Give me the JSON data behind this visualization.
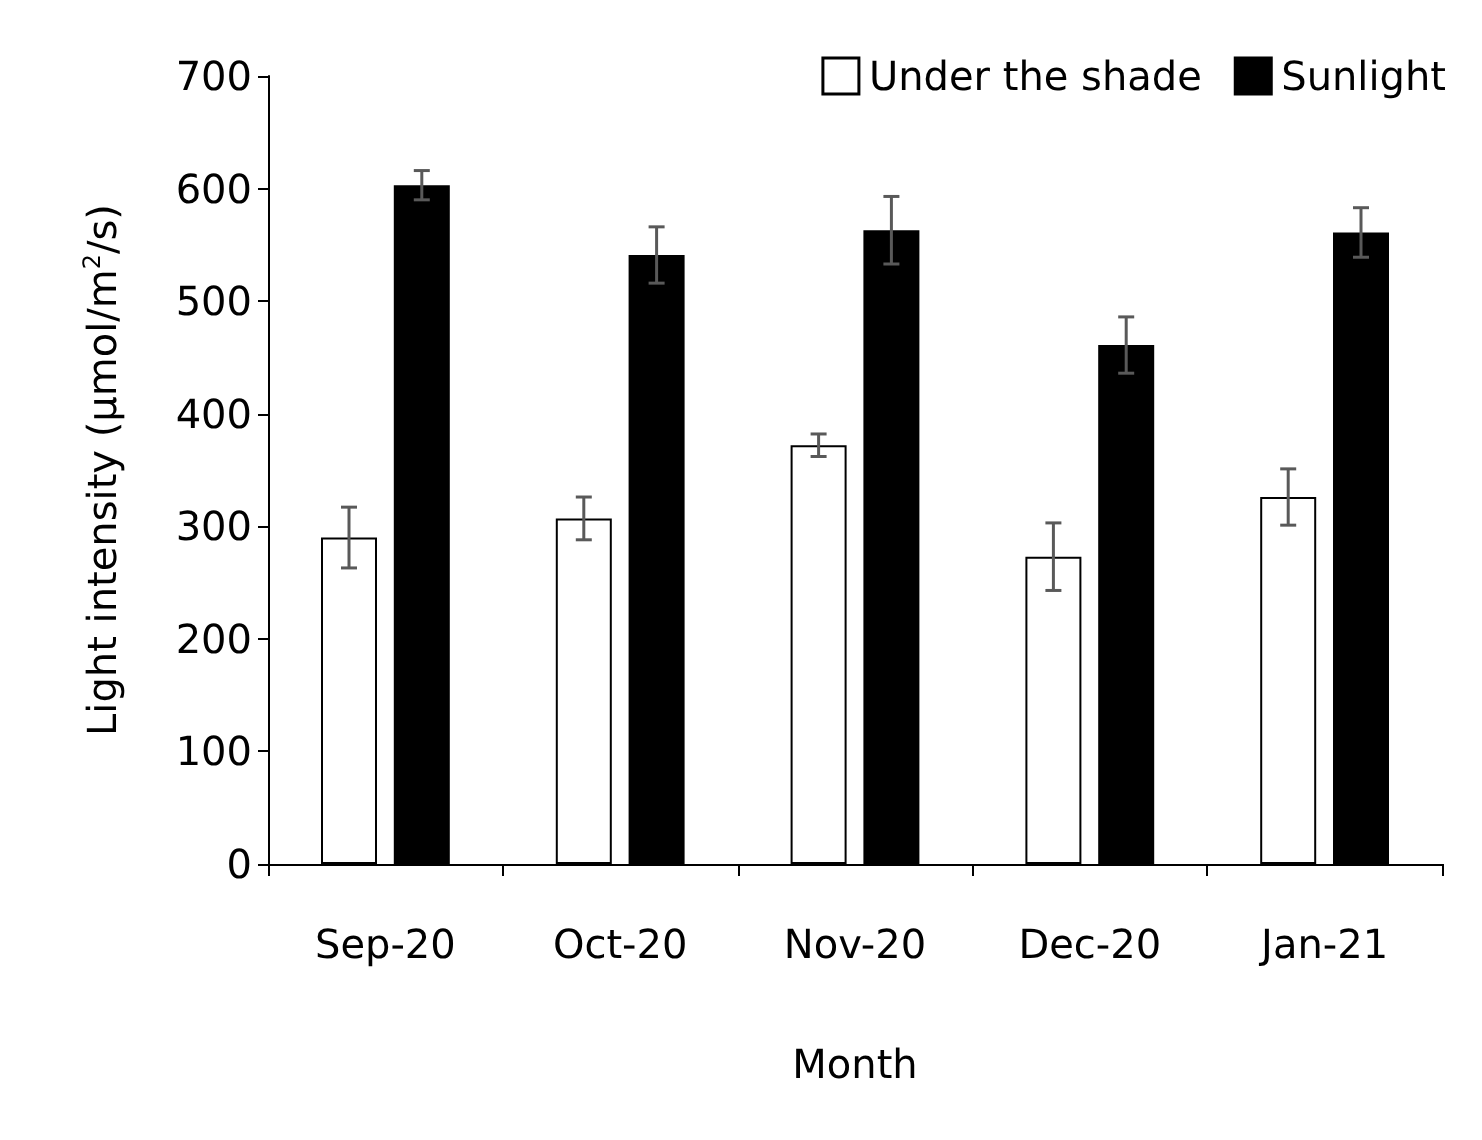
{
  "chart_data": {
    "type": "bar",
    "xlabel": "Month",
    "ylabel": "Light intensity (µmol/m$^{2}$/s)",
    "categories": [
      "Sep-20",
      "Oct-20",
      "Nov-20",
      "Dec-20",
      "Jan-21"
    ],
    "series": [
      {
        "name": "Under the shade",
        "color": "#ffffff",
        "values": [
          290,
          307,
          372,
          273,
          326
        ],
        "errors": [
          27,
          19,
          10,
          30,
          25
        ]
      },
      {
        "name": "Sunlight",
        "color": "#000000",
        "values": [
          603,
          541,
          563,
          461,
          561
        ],
        "errors": [
          13,
          25,
          30,
          25,
          22
        ]
      }
    ],
    "ylim": [
      0,
      700
    ],
    "yticks": [
      0,
      100,
      200,
      300,
      400,
      500,
      600,
      700
    ],
    "grid": false,
    "legend": "top right"
  }
}
